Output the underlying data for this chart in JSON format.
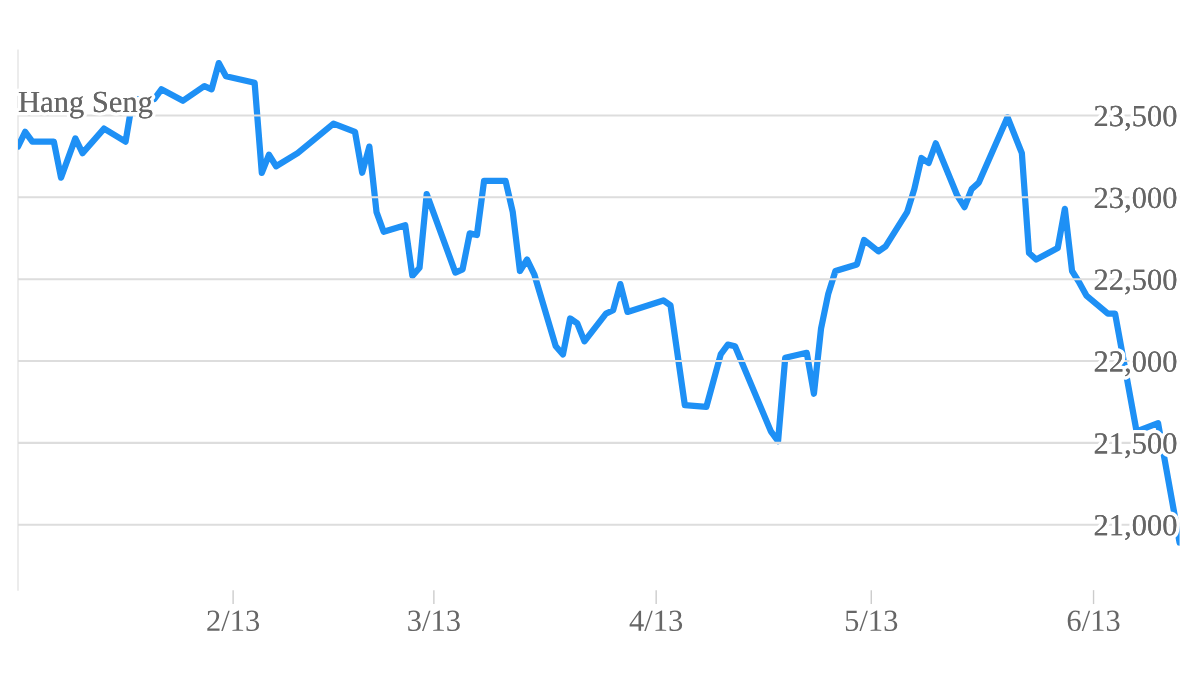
{
  "chart_data": {
    "type": "line",
    "title": "Hang Seng",
    "x": [
      "2013-01-02",
      "2013-01-03",
      "2013-01-04",
      "2013-01-07",
      "2013-01-08",
      "2013-01-10",
      "2013-01-11",
      "2013-01-14",
      "2013-01-17",
      "2013-01-18",
      "2013-01-21",
      "2013-01-22",
      "2013-01-25",
      "2013-01-28",
      "2013-01-29",
      "2013-01-30",
      "2013-01-31",
      "2013-02-04",
      "2013-02-05",
      "2013-02-06",
      "2013-02-07",
      "2013-02-10",
      "2013-02-15",
      "2013-02-18",
      "2013-02-19",
      "2013-02-20",
      "2013-02-21",
      "2013-02-22",
      "2013-02-25",
      "2013-02-26",
      "2013-02-27",
      "2013-02-28",
      "2013-03-04",
      "2013-03-05",
      "2013-03-06",
      "2013-03-07",
      "2013-03-08",
      "2013-03-11",
      "2013-03-12",
      "2013-03-13",
      "2013-03-14",
      "2013-03-15",
      "2013-03-18",
      "2013-03-19",
      "2013-03-20",
      "2013-03-21",
      "2013-03-22",
      "2013-03-25",
      "2013-03-26",
      "2013-03-27",
      "2013-03-28",
      "2013-04-02",
      "2013-04-03",
      "2013-04-05",
      "2013-04-08",
      "2013-04-10",
      "2013-04-11",
      "2013-04-12",
      "2013-04-17",
      "2013-04-18",
      "2013-04-19",
      "2013-04-22",
      "2013-04-23",
      "2013-04-24",
      "2013-04-25",
      "2013-04-26",
      "2013-04-29",
      "2013-04-30",
      "2013-05-02",
      "2013-05-03",
      "2013-05-06",
      "2013-05-07",
      "2013-05-08",
      "2013-05-09",
      "2013-05-10",
      "2013-05-13",
      "2013-05-14",
      "2013-05-15",
      "2013-05-16",
      "2013-05-20",
      "2013-05-22",
      "2013-05-23",
      "2013-05-24",
      "2013-05-27",
      "2013-05-28",
      "2013-05-29",
      "2013-05-30",
      "2013-05-31",
      "2013-06-03",
      "2013-06-04",
      "2013-06-07",
      "2013-06-10",
      "2013-06-13"
    ],
    "series": [
      {
        "color": "#1e90f5",
        "values": [
          23310,
          23400,
          23340,
          23340,
          23120,
          23360,
          23270,
          23420,
          23340,
          23600,
          23600,
          23660,
          23590,
          23680,
          23660,
          23820,
          23740,
          23700,
          23150,
          23260,
          23190,
          23270,
          23450,
          23400,
          23150,
          23310,
          22910,
          22790,
          22830,
          22520,
          22570,
          23020,
          22540,
          22560,
          22780,
          22770,
          23100,
          23100,
          22910,
          22550,
          22620,
          22530,
          22090,
          22040,
          22260,
          22230,
          22120,
          22290,
          22310,
          22470,
          22300,
          22370,
          22340,
          21730,
          21720,
          22040,
          22100,
          22090,
          21570,
          21510,
          22020,
          22050,
          21800,
          22200,
          22410,
          22550,
          22590,
          22740,
          22670,
          22700,
          22910,
          23050,
          23240,
          23210,
          23330,
          23010,
          22940,
          23050,
          23090,
          23490,
          23270,
          22660,
          22620,
          22690,
          22930,
          22550,
          22480,
          22400,
          22290,
          22290,
          21570,
          21620,
          20890
        ]
      }
    ],
    "xlim": [
      "2013-01-02",
      "2013-06-13"
    ],
    "xticks": [
      {
        "value": "2013-02-01",
        "label": "2/13"
      },
      {
        "value": "2013-03-01",
        "label": "3/13"
      },
      {
        "value": "2013-04-01",
        "label": "4/13"
      },
      {
        "value": "2013-05-01",
        "label": "5/13"
      },
      {
        "value": "2013-06-01",
        "label": "6/13"
      }
    ],
    "yticks": [
      {
        "value": 21000,
        "label": "21,000"
      },
      {
        "value": 21500,
        "label": "21,500"
      },
      {
        "value": 22000,
        "label": "22,000"
      },
      {
        "value": 22500,
        "label": "22,500"
      },
      {
        "value": 23000,
        "label": "23,000"
      },
      {
        "value": 23500,
        "label": "23,500"
      }
    ],
    "ylim": [
      20600,
      23900
    ],
    "grid": "y",
    "legend": false,
    "marker": "none",
    "line_style": "solid"
  }
}
